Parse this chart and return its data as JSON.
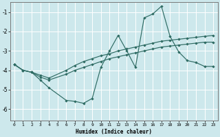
{
  "xlabel": "Humidex (Indice chaleur)",
  "bg_color": "#cde8ec",
  "grid_color": "#ffffff",
  "line_color": "#2e6b63",
  "xlim": [
    -0.5,
    23.5
  ],
  "ylim": [
    -6.6,
    -0.5
  ],
  "yticks": [
    -6,
    -5,
    -4,
    -3,
    -2,
    -1
  ],
  "xticks": [
    0,
    1,
    2,
    3,
    4,
    5,
    6,
    7,
    8,
    9,
    10,
    11,
    12,
    13,
    14,
    15,
    16,
    17,
    18,
    19,
    20,
    21,
    22,
    23
  ],
  "line1_x": [
    0,
    1,
    2,
    3,
    4,
    6,
    7,
    8,
    9,
    10,
    11,
    12,
    13,
    14,
    15,
    16,
    17,
    18,
    19,
    20,
    21,
    22,
    23
  ],
  "line1_y": [
    -3.7,
    -4.0,
    -4.1,
    -4.5,
    -4.9,
    -5.55,
    -5.6,
    -5.7,
    -5.45,
    -3.85,
    -3.0,
    -2.2,
    -3.0,
    -3.85,
    -1.3,
    -1.1,
    -0.7,
    -2.25,
    -3.05,
    -3.5,
    -3.6,
    -3.8,
    -3.8
  ],
  "line2_x": [
    0,
    1,
    2,
    3,
    4,
    6,
    7,
    8,
    9,
    10,
    11,
    12,
    13,
    14,
    15,
    16,
    17,
    18,
    19,
    20,
    21,
    22,
    23
  ],
  "line2_y": [
    -3.7,
    -4.0,
    -4.1,
    -4.35,
    -4.5,
    -4.2,
    -4.0,
    -3.85,
    -3.7,
    -3.55,
    -3.4,
    -3.3,
    -3.2,
    -3.1,
    -3.0,
    -2.9,
    -2.8,
    -2.75,
    -2.7,
    -2.65,
    -2.6,
    -2.55,
    -2.55
  ],
  "line3_x": [
    0,
    1,
    2,
    3,
    4,
    6,
    7,
    8,
    9,
    10,
    11,
    12,
    13,
    14,
    15,
    16,
    17,
    18,
    19,
    20,
    21,
    22,
    23
  ],
  "line3_y": [
    -3.7,
    -4.0,
    -4.1,
    -4.25,
    -4.4,
    -4.0,
    -3.75,
    -3.55,
    -3.4,
    -3.25,
    -3.15,
    -3.0,
    -2.9,
    -2.8,
    -2.7,
    -2.6,
    -2.5,
    -2.45,
    -2.4,
    -2.35,
    -2.3,
    -2.25,
    -2.2
  ]
}
